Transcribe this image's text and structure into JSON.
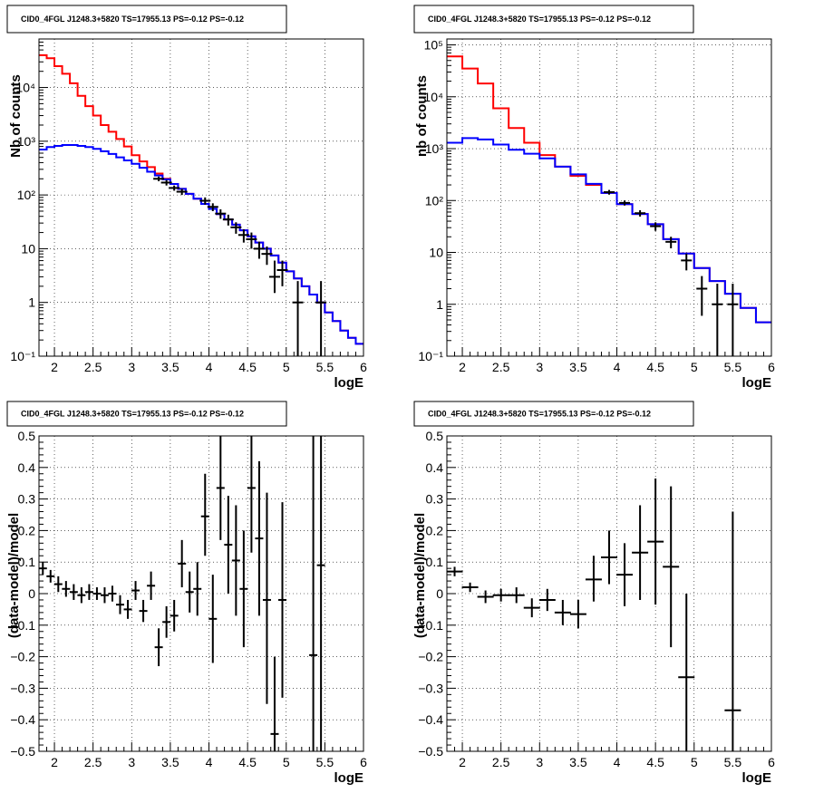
{
  "chart_data": [
    {
      "type": "line",
      "panel": "top-left",
      "title": "CID0_4FGL J1248.3+5820 TS=17955.13 PS=-0.12 PS=-0.12",
      "xlabel": "logE",
      "ylabel": "Nb of counts",
      "xlim": [
        1.8,
        6
      ],
      "ylim": [
        0.1,
        80000
      ],
      "yscale": "log",
      "grid": true,
      "xticks": [
        "2",
        "2.5",
        "3",
        "3.5",
        "4",
        "4.5",
        "5",
        "5.5",
        "6"
      ],
      "yticks": [
        "10^-1",
        "1",
        "10",
        "10^2",
        "10^3",
        "10^4"
      ],
      "series": [
        {
          "color": "#ff0000",
          "step": "hist",
          "bin_edges": [
            1.8,
            1.9,
            2.0,
            2.1,
            2.2,
            2.3,
            2.4,
            2.5,
            2.6,
            2.7,
            2.8,
            2.9,
            3.0,
            3.1,
            3.2,
            3.3,
            3.4,
            3.5,
            3.6,
            3.7,
            3.8,
            3.9,
            4.0,
            4.1,
            4.2,
            4.3,
            4.4,
            4.5,
            4.6,
            4.7,
            4.8,
            4.9,
            5.0,
            5.1,
            5.2,
            5.3,
            5.4,
            5.5,
            5.6,
            5.7,
            5.8,
            5.9,
            6.0
          ],
          "values": [
            40000,
            35000,
            25000,
            18000,
            12000,
            7000,
            4500,
            3000,
            2000,
            1500,
            1100,
            800,
            550,
            420,
            330,
            250,
            200,
            160,
            130,
            105,
            85,
            68,
            55,
            44,
            35,
            28,
            22,
            17,
            13,
            10,
            7.5,
            5.5,
            3.8,
            2.8,
            2.0,
            1.4,
            1.0,
            0.65,
            0.45,
            0.3,
            0.22,
            0.17
          ]
        },
        {
          "color": "#0000ff",
          "step": "hist",
          "bin_edges": [
            1.8,
            1.9,
            2.0,
            2.1,
            2.2,
            2.3,
            2.4,
            2.5,
            2.6,
            2.7,
            2.8,
            2.9,
            3.0,
            3.1,
            3.2,
            3.3,
            3.4,
            3.5,
            3.6,
            3.7,
            3.8,
            3.9,
            4.0,
            4.1,
            4.2,
            4.3,
            4.4,
            4.5,
            4.6,
            4.7,
            4.8,
            4.9,
            5.0,
            5.1,
            5.2,
            5.3,
            5.4,
            5.5,
            5.6,
            5.7,
            5.8,
            5.9,
            6.0
          ],
          "values": [
            700,
            780,
            820,
            850,
            850,
            820,
            780,
            720,
            650,
            580,
            500,
            440,
            380,
            320,
            270,
            230,
            195,
            160,
            130,
            105,
            85,
            68,
            55,
            44,
            35,
            28,
            22,
            17,
            13,
            10,
            7.5,
            5.5,
            3.8,
            2.8,
            2.0,
            1.4,
            1.0,
            0.65,
            0.45,
            0.3,
            0.22,
            0.17
          ]
        },
        {
          "color": "#000000",
          "style": "errorbar",
          "points": [
            {
              "x": 3.35,
              "y": 200,
              "lo": 180,
              "hi": 220
            },
            {
              "x": 3.45,
              "y": 170,
              "lo": 150,
              "hi": 190
            },
            {
              "x": 3.55,
              "y": 135,
              "lo": 120,
              "hi": 150
            },
            {
              "x": 3.65,
              "y": 115,
              "lo": 100,
              "hi": 130
            },
            {
              "x": 3.95,
              "y": 78,
              "lo": 66,
              "hi": 90
            },
            {
              "x": 4.05,
              "y": 60,
              "lo": 50,
              "hi": 70
            },
            {
              "x": 4.15,
              "y": 45,
              "lo": 36,
              "hi": 54
            },
            {
              "x": 4.25,
              "y": 35,
              "lo": 27,
              "hi": 43
            },
            {
              "x": 4.35,
              "y": 25,
              "lo": 19,
              "hi": 31
            },
            {
              "x": 4.45,
              "y": 18,
              "lo": 13,
              "hi": 23
            },
            {
              "x": 4.55,
              "y": 15,
              "lo": 10,
              "hi": 20
            },
            {
              "x": 4.65,
              "y": 10,
              "lo": 6.5,
              "hi": 13.5
            },
            {
              "x": 4.75,
              "y": 8,
              "lo": 5,
              "hi": 11
            },
            {
              "x": 4.85,
              "y": 3,
              "lo": 1.5,
              "hi": 6
            },
            {
              "x": 4.95,
              "y": 4,
              "lo": 2,
              "hi": 6
            },
            {
              "x": 5.15,
              "y": 1,
              "lo": 0.1,
              "hi": 2.5
            },
            {
              "x": 5.45,
              "y": 1,
              "lo": 0.1,
              "hi": 2.5
            }
          ]
        }
      ]
    },
    {
      "type": "line",
      "panel": "top-right",
      "title": "CID0_4FGL J1248.3+5820 TS=17955.13 PS=-0.12 PS=-0.12",
      "xlabel": "logE",
      "ylabel": "nb of counts",
      "xlim": [
        1.8,
        6
      ],
      "ylim": [
        0.1,
        130000
      ],
      "yscale": "log",
      "grid": true,
      "xticks": [
        "2",
        "2.5",
        "3",
        "3.5",
        "4",
        "4.5",
        "5",
        "5.5",
        "6"
      ],
      "yticks": [
        "10^-1",
        "1",
        "10",
        "10^2",
        "10^3",
        "10^4",
        "10^5"
      ],
      "series": [
        {
          "color": "#ff0000",
          "step": "hist",
          "bin_edges": [
            1.8,
            2.0,
            2.2,
            2.4,
            2.6,
            2.8,
            3.0,
            3.2,
            3.4,
            3.6,
            3.8,
            4.0,
            4.2,
            4.4,
            4.6,
            4.8,
            5.0,
            5.2,
            5.4,
            5.6,
            5.8,
            6.0
          ],
          "values": [
            60000,
            35000,
            18000,
            6000,
            2500,
            1300,
            750,
            450,
            300,
            200,
            140,
            85,
            55,
            35,
            18,
            9.5,
            5,
            2.8,
            1.6,
            0.85,
            0.45
          ]
        },
        {
          "color": "#0000ff",
          "step": "hist",
          "bin_edges": [
            1.8,
            2.0,
            2.2,
            2.4,
            2.6,
            2.8,
            3.0,
            3.2,
            3.4,
            3.6,
            3.8,
            4.0,
            4.2,
            4.4,
            4.6,
            4.8,
            5.0,
            5.2,
            5.4,
            5.6,
            5.8,
            6.0
          ],
          "values": [
            1300,
            1600,
            1500,
            1200,
            950,
            800,
            650,
            450,
            320,
            210,
            140,
            85,
            55,
            35,
            18,
            9.5,
            5,
            2.8,
            1.6,
            0.85,
            0.45
          ]
        },
        {
          "color": "#000000",
          "style": "errorbar",
          "points": [
            {
              "x": 3.9,
              "y": 145,
              "lo": 130,
              "hi": 160
            },
            {
              "x": 4.1,
              "y": 90,
              "lo": 80,
              "hi": 100
            },
            {
              "x": 4.3,
              "y": 57,
              "lo": 49,
              "hi": 65
            },
            {
              "x": 4.5,
              "y": 32,
              "lo": 26,
              "hi": 38
            },
            {
              "x": 4.7,
              "y": 16,
              "lo": 12,
              "hi": 20
            },
            {
              "x": 4.9,
              "y": 7,
              "lo": 4.5,
              "hi": 9.5
            },
            {
              "x": 5.1,
              "y": 2,
              "lo": 0.6,
              "hi": 3.5
            },
            {
              "x": 5.3,
              "y": 1,
              "lo": 0.1,
              "hi": 2.5
            },
            {
              "x": 5.5,
              "y": 1,
              "lo": 0.1,
              "hi": 2.5
            }
          ]
        }
      ]
    },
    {
      "type": "scatter",
      "panel": "bottom-left",
      "title": "CID0_4FGL J1248.3+5820 TS=17955.13 PS=-0.12 PS=-0.12",
      "xlabel": "logE",
      "ylabel": "(data-model)/model",
      "xlim": [
        1.8,
        6
      ],
      "ylim": [
        -0.5,
        0.5
      ],
      "grid": true,
      "xticks": [
        "2",
        "2.5",
        "3",
        "3.5",
        "4",
        "4.5",
        "5",
        "5.5",
        "6"
      ],
      "yticks": [
        "-0.5",
        "-0.4",
        "-0.3",
        "-0.2",
        "-0.1",
        "0",
        "0.1",
        "0.2",
        "0.3",
        "0.4",
        "0.5"
      ],
      "points": [
        {
          "x": 1.85,
          "y": 0.08,
          "lo": 0.06,
          "hi": 0.1
        },
        {
          "x": 1.95,
          "y": 0.055,
          "lo": 0.035,
          "hi": 0.075
        },
        {
          "x": 2.05,
          "y": 0.03,
          "lo": 0.005,
          "hi": 0.055
        },
        {
          "x": 2.15,
          "y": 0.015,
          "lo": -0.01,
          "hi": 0.04
        },
        {
          "x": 2.25,
          "y": 0.005,
          "lo": -0.02,
          "hi": 0.03
        },
        {
          "x": 2.35,
          "y": -0.005,
          "lo": -0.03,
          "hi": 0.02
        },
        {
          "x": 2.45,
          "y": 0.005,
          "lo": -0.02,
          "hi": 0.03
        },
        {
          "x": 2.55,
          "y": 0.0,
          "lo": -0.02,
          "hi": 0.02
        },
        {
          "x": 2.65,
          "y": -0.005,
          "lo": -0.03,
          "hi": 0.02
        },
        {
          "x": 2.75,
          "y": 0.0,
          "lo": -0.025,
          "hi": 0.025
        },
        {
          "x": 2.85,
          "y": -0.035,
          "lo": -0.065,
          "hi": -0.005
        },
        {
          "x": 2.95,
          "y": -0.05,
          "lo": -0.08,
          "hi": -0.02
        },
        {
          "x": 3.05,
          "y": 0.01,
          "lo": -0.02,
          "hi": 0.04
        },
        {
          "x": 3.15,
          "y": -0.055,
          "lo": -0.09,
          "hi": -0.02
        },
        {
          "x": 3.25,
          "y": 0.025,
          "lo": -0.02,
          "hi": 0.07
        },
        {
          "x": 3.35,
          "y": -0.17,
          "lo": -0.23,
          "hi": -0.11
        },
        {
          "x": 3.45,
          "y": -0.09,
          "lo": -0.14,
          "hi": -0.04
        },
        {
          "x": 3.55,
          "y": -0.07,
          "lo": -0.12,
          "hi": -0.02
        },
        {
          "x": 3.65,
          "y": 0.095,
          "lo": 0.02,
          "hi": 0.17
        },
        {
          "x": 3.75,
          "y": 0.005,
          "lo": -0.06,
          "hi": 0.07
        },
        {
          "x": 3.85,
          "y": 0.015,
          "lo": -0.07,
          "hi": 0.1
        },
        {
          "x": 3.95,
          "y": 0.245,
          "lo": 0.12,
          "hi": 0.38
        },
        {
          "x": 4.05,
          "y": -0.08,
          "lo": -0.22,
          "hi": 0.06
        },
        {
          "x": 4.15,
          "y": 0.335,
          "lo": 0.17,
          "hi": 0.5
        },
        {
          "x": 4.25,
          "y": 0.155,
          "lo": 0.0,
          "hi": 0.31
        },
        {
          "x": 4.35,
          "y": 0.105,
          "lo": -0.07,
          "hi": 0.28
        },
        {
          "x": 4.45,
          "y": 0.015,
          "lo": -0.17,
          "hi": 0.2
        },
        {
          "x": 4.55,
          "y": 0.335,
          "lo": 0.13,
          "hi": 0.54
        },
        {
          "x": 4.65,
          "y": 0.175,
          "lo": -0.07,
          "hi": 0.42
        },
        {
          "x": 4.75,
          "y": -0.02,
          "lo": -0.35,
          "hi": 0.32
        },
        {
          "x": 4.85,
          "y": -0.445,
          "lo": -0.7,
          "hi": -0.2
        },
        {
          "x": 4.95,
          "y": -0.02,
          "lo": -0.33,
          "hi": 0.29
        },
        {
          "x": 5.35,
          "y": -0.195,
          "lo": -0.7,
          "hi": 0.6
        },
        {
          "x": 5.45,
          "y": 0.09,
          "lo": -0.7,
          "hi": 0.7
        }
      ]
    },
    {
      "type": "scatter",
      "panel": "bottom-right",
      "title": "CID0_4FGL J1248.3+5820 TS=17955.13 PS=-0.12 PS=-0.12",
      "xlabel": "logE",
      "ylabel": "(data-model)/model",
      "xlim": [
        1.8,
        6
      ],
      "ylim": [
        -0.5,
        0.5
      ],
      "grid": true,
      "xticks": [
        "2",
        "2.5",
        "3",
        "3.5",
        "4",
        "4.5",
        "5",
        "5.5",
        "6"
      ],
      "yticks": [
        "-0.5",
        "-0.4",
        "-0.3",
        "-0.2",
        "-0.1",
        "0",
        "0.1",
        "0.2",
        "0.3",
        "0.4",
        "0.5"
      ],
      "points": [
        {
          "x": 1.9,
          "y": 0.07,
          "lo": 0.055,
          "hi": 0.085
        },
        {
          "x": 2.1,
          "y": 0.02,
          "lo": 0.005,
          "hi": 0.035
        },
        {
          "x": 2.3,
          "y": -0.01,
          "lo": -0.03,
          "hi": 0.01
        },
        {
          "x": 2.5,
          "y": -0.005,
          "lo": -0.025,
          "hi": 0.015
        },
        {
          "x": 2.7,
          "y": -0.005,
          "lo": -0.03,
          "hi": 0.02
        },
        {
          "x": 2.9,
          "y": -0.045,
          "lo": -0.075,
          "hi": -0.015
        },
        {
          "x": 3.1,
          "y": -0.02,
          "lo": -0.055,
          "hi": 0.015
        },
        {
          "x": 3.3,
          "y": -0.06,
          "lo": -0.1,
          "hi": -0.02
        },
        {
          "x": 3.5,
          "y": -0.065,
          "lo": -0.11,
          "hi": -0.02
        },
        {
          "x": 3.7,
          "y": 0.045,
          "lo": -0.025,
          "hi": 0.12
        },
        {
          "x": 3.9,
          "y": 0.115,
          "lo": 0.03,
          "hi": 0.2
        },
        {
          "x": 4.1,
          "y": 0.06,
          "lo": -0.04,
          "hi": 0.16
        },
        {
          "x": 4.3,
          "y": 0.13,
          "lo": -0.02,
          "hi": 0.28
        },
        {
          "x": 4.5,
          "y": 0.165,
          "lo": -0.035,
          "hi": 0.365
        },
        {
          "x": 4.7,
          "y": 0.085,
          "lo": -0.17,
          "hi": 0.34
        },
        {
          "x": 4.9,
          "y": -0.265,
          "lo": -0.7,
          "hi": 0.0
        },
        {
          "x": 5.5,
          "y": -0.37,
          "lo": -0.7,
          "hi": 0.26
        }
      ]
    }
  ]
}
